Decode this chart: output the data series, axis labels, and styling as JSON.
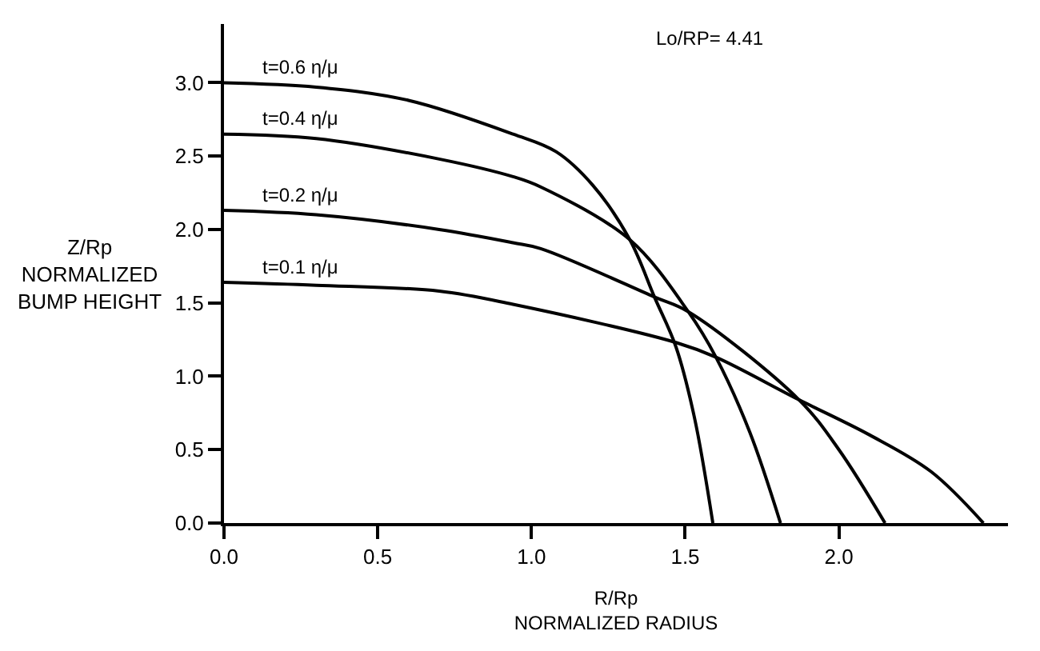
{
  "chart_data": {
    "type": "line",
    "xlabel": "R/Rp\nNORMALIZED RADIUS",
    "ylabel": "Z/Rp\nNORMALIZED\nBUMP HEIGHT",
    "annotations": [
      "Lo/RP= 4.41"
    ],
    "series": [
      {
        "name": "t=0.6 η/μ",
        "color": "#000000",
        "x": [
          0,
          0.3,
          0.6,
          0.94,
          1.08,
          1.2,
          1.32,
          1.4,
          1.47,
          1.53,
          1.59
        ],
        "values": [
          3.0,
          2.97,
          2.88,
          2.65,
          2.53,
          2.3,
          1.93,
          1.54,
          1.2,
          0.72,
          0
        ]
      },
      {
        "name": "t=0.4 η/μ",
        "color": "#000000",
        "x": [
          0,
          0.3,
          0.7,
          0.94,
          1.03,
          1.32,
          1.51,
          1.6,
          1.71,
          1.81
        ],
        "values": [
          2.65,
          2.62,
          2.48,
          2.36,
          2.29,
          1.93,
          1.44,
          1.13,
          0.62,
          0
        ]
      },
      {
        "name": "t=0.2 η/μ",
        "color": "#000000",
        "x": [
          0,
          0.3,
          0.7,
          0.94,
          1.03,
          1.4,
          1.51,
          1.87,
          2.0,
          2.15
        ],
        "values": [
          2.13,
          2.1,
          2.0,
          1.91,
          1.87,
          1.54,
          1.44,
          0.84,
          0.5,
          0
        ]
      },
      {
        "name": "t=0.1 η/μ",
        "color": "#000000",
        "x": [
          0,
          0.3,
          0.7,
          0.94,
          1.47,
          1.6,
          1.87,
          2.1,
          2.3,
          2.47
        ],
        "values": [
          1.64,
          1.62,
          1.58,
          1.49,
          1.23,
          1.13,
          0.84,
          0.6,
          0.35,
          0
        ]
      }
    ],
    "xlim": [
      0,
      2.55
    ],
    "ylim": [
      0,
      3.4
    ],
    "xticks": [
      {
        "value": 0,
        "label": "0.0"
      },
      {
        "value": 0.5,
        "label": "0.5"
      },
      {
        "value": 1.0,
        "label": "1.0"
      },
      {
        "value": 1.5,
        "label": "1.5"
      },
      {
        "value": 2.0,
        "label": "2.0"
      }
    ],
    "yticks": [
      {
        "value": 0,
        "label": "0.0"
      },
      {
        "value": 0.5,
        "label": "0.5"
      },
      {
        "value": 1.0,
        "label": "1.0"
      },
      {
        "value": 1.5,
        "label": "1.5"
      },
      {
        "value": 2.0,
        "label": "2.0"
      },
      {
        "value": 2.5,
        "label": "2.5"
      },
      {
        "value": 3.0,
        "label": "3.0"
      }
    ],
    "legend": false,
    "marker": "none",
    "line_style": "solid"
  }
}
